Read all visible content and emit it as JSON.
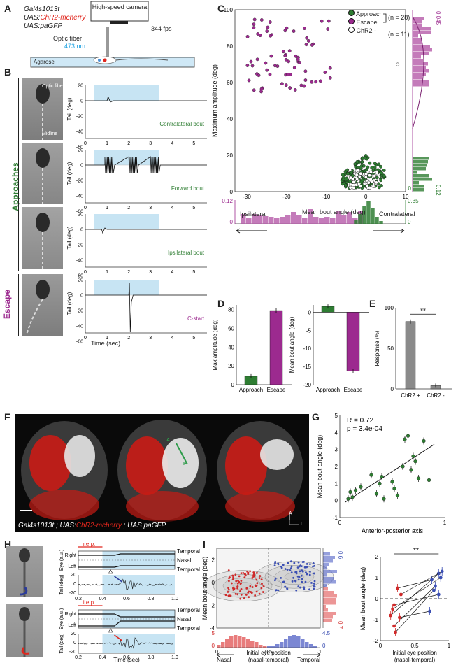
{
  "panels": {
    "A": "A",
    "B": "B",
    "C": "C",
    "D": "D",
    "E": "E",
    "F": "F",
    "G": "G",
    "H": "H",
    "I": "I"
  },
  "panelA": {
    "line1": "Gal4s1013t",
    "line2_pre": "UAS:",
    "line2_red": "ChR2-mcherry",
    "line3": "UAS:paGFP",
    "camera": "High-speed camera",
    "fps": "344 fps",
    "fiber": "Optic fiber",
    "nm": "473 nm",
    "agarose": "Agarose"
  },
  "panelB": {
    "group_approach": "Approaches",
    "group_escape": "Escape",
    "ylabel": "Tail (deg)",
    "xlabel": "Time (sec)",
    "yticks": [
      "20",
      "0",
      "-20",
      "-40",
      "-60"
    ],
    "xticks": [
      "0",
      "1",
      "2",
      "3",
      "4",
      "5"
    ],
    "traces": [
      {
        "label": "Contralateral bout",
        "color": "#2e7d32"
      },
      {
        "label": "Forward bout",
        "color": "#2e7d32"
      },
      {
        "label": "Ipsilateral bout",
        "color": "#2e7d32"
      },
      {
        "label": "C-start",
        "color": "#9c2a8f"
      }
    ],
    "photo_optic": "Optic fiber",
    "photo_midline": "Midline"
  },
  "panelC": {
    "ylabel": "Maximum amplitude (deg)",
    "xlabel": "Mean bout angle (deg)",
    "yticks": [
      "0",
      "20",
      "40",
      "60",
      "80",
      "100"
    ],
    "xticks": [
      "-30",
      "-20",
      "-10",
      "0",
      "10"
    ],
    "legend": [
      {
        "name": "Approach",
        "color": "#2e7d32"
      },
      {
        "name": "Escape",
        "color": "#9c2a8f"
      },
      {
        "name": "ChR2 -",
        "color": "#ffffff"
      }
    ],
    "n1": "(n = 28)",
    "n2": "(n = 11)",
    "hist_right_top": "0.045",
    "hist_right_bottom": "0.12",
    "hist_right_zero": "0",
    "hist_bot_left_top": "0.12",
    "hist_bot_left_zero": "0",
    "hist_bot_right_top": "0.35",
    "hist_bot_right_zero": "0",
    "ipsi": "Ipsilateral",
    "contra": "Contralateral",
    "color_approach": "#2e7d32",
    "color_escape": "#9c2a8f"
  },
  "panelD": {
    "left": {
      "ylabel": "Max amplitude (deg)",
      "yticks": [
        "0",
        "20",
        "40",
        "60",
        "80"
      ],
      "categories": [
        "Approach",
        "Escape"
      ],
      "values": [
        9,
        79
      ],
      "colors": [
        "#2e7d32",
        "#9c2a8f"
      ]
    },
    "right": {
      "ylabel": "Mean bout angle (deg)",
      "yticks": [
        "0",
        "-5",
        "-10",
        "-15",
        "-20"
      ],
      "categories": [
        "Approach",
        "Escape"
      ],
      "values": [
        1.6,
        -16.2
      ],
      "colors": [
        "#2e7d32",
        "#9c2a8f"
      ]
    }
  },
  "panelE": {
    "ylabel": "Response (%)",
    "yticks": [
      "0",
      "50",
      "100"
    ],
    "categories": [
      "ChR2 +",
      "ChR2 -"
    ],
    "values": [
      83,
      4
    ],
    "sig": "**"
  },
  "panelF": {
    "caption_1": "Gal4s1013t ; UAS:",
    "caption_red": "ChR2-mcherry",
    "caption_2": " ; UAS:paGFP",
    "a": "A",
    "l": "L",
    "marker_a": "A",
    "marker_p": "P"
  },
  "panelG": {
    "r": "R = 0.72",
    "p": "p = 3.4e-04",
    "ylabel": "Mean bout angle (deg)",
    "xlabel": "Anterior-posterior axis",
    "yticks": [
      "-1",
      "0",
      "1",
      "2",
      "3",
      "4",
      "5"
    ],
    "xticks": [
      "0",
      "1"
    ],
    "chart_data": {
      "type": "scatter",
      "x": [
        0.08,
        0.1,
        0.12,
        0.15,
        0.2,
        0.3,
        0.35,
        0.38,
        0.4,
        0.42,
        0.5,
        0.52,
        0.55,
        0.6,
        0.62,
        0.65,
        0.68,
        0.7,
        0.72,
        0.75,
        0.8,
        0.85
      ],
      "y": [
        0.1,
        0.5,
        0.2,
        0.6,
        0.8,
        1.5,
        0.4,
        1.0,
        1.4,
        0.1,
        1.1,
        0.7,
        0.3,
        2.0,
        3.6,
        3.8,
        1.8,
        2.6,
        2.3,
        1.3,
        3.5,
        1.2
      ]
    }
  },
  "panelH": {
    "iep": "i.e.p.",
    "eye_ylabel": "Eye (a.u.)",
    "left": "Left",
    "right": "Right",
    "temporal": "Temporal",
    "nasal": "Nasal",
    "tail_ylabel": "Tail (deg)",
    "xlabel": "Time (sec)",
    "tail_yticks": [
      "20",
      "0",
      "-20"
    ],
    "xticks": [
      "0.2",
      "0.4",
      "0.6",
      "0.8",
      "1.0"
    ]
  },
  "panelI": {
    "ylabel": "Mean bout angle (deg)",
    "xlabel1": "Initial eye position",
    "xlabel2": "(nasal-temporal)",
    "yticks": [
      "-4",
      "-2",
      "0",
      "2"
    ],
    "xticks": [
      "0",
      "0.5",
      "1"
    ],
    "nasal": "Nasal",
    "temporal": "Temporal",
    "hist_top_right": "0.6",
    "hist_top_red": "0.7",
    "hist_zero": "0",
    "hist_left": "5",
    "hist_right": "4.5",
    "right_ylabel": "Mean bout angle (deg)",
    "right_xlabel1": "Initial eye position",
    "right_xlabel2": "(nasal-temporal)",
    "right_yticks": [
      "-2",
      "-1",
      "0",
      "1",
      "2"
    ],
    "right_xticks": [
      "0",
      "0.5",
      "1"
    ],
    "sig": "**"
  }
}
